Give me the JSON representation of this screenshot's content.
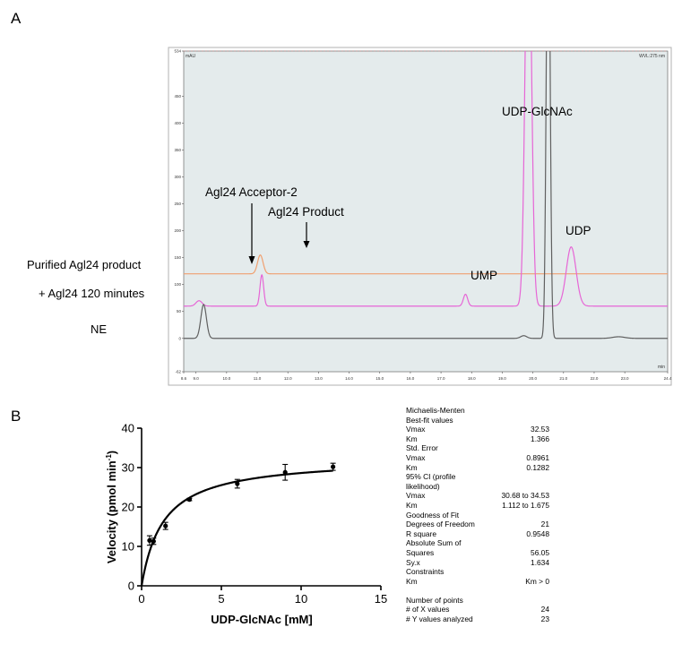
{
  "panel_a": {
    "letter": "A",
    "unit_label": "mAU",
    "wavelength_label": "WVL:275 nm",
    "time_unit": "min",
    "y_top_label": "534",
    "trace_labels": [
      "Purified Agl24 product",
      "+ Agl24 120 minutes",
      "NE"
    ],
    "peak_labels": {
      "acceptor": "Agl24 Acceptor-2",
      "product": "Agl24 Product",
      "ump": "UMP",
      "udp_glcnac": "UDP-GlcNAc",
      "udp": "UDP"
    }
  },
  "panel_b": {
    "letter": "B",
    "stats": [
      {
        "label": "Michaelis-Menten",
        "value": ""
      },
      {
        "label": "Best-fit values",
        "value": ""
      },
      {
        "label": "Vmax",
        "value": "32.53"
      },
      {
        "label": "Km",
        "value": "1.366"
      },
      {
        "label": "Std. Error",
        "value": ""
      },
      {
        "label": "Vmax",
        "value": "0.8961"
      },
      {
        "label": "Km",
        "value": "0.1282"
      },
      {
        "label": "95% CI (profile",
        "value": ""
      },
      {
        "label": "likelihood)",
        "value": ""
      },
      {
        "label": "Vmax",
        "value": "30.68 to 34.53"
      },
      {
        "label": "Km",
        "value": "1.112 to 1.675"
      },
      {
        "label": "Goodness of Fit",
        "value": ""
      },
      {
        "label": "Degrees of Freedom",
        "value": "21"
      },
      {
        "label": "R square",
        "value": "0.9548"
      },
      {
        "label": "Absolute Sum of",
        "value": ""
      },
      {
        "label": "Squares",
        "value": "56.05"
      },
      {
        "label": "Sy.x",
        "value": "1.634"
      },
      {
        "label": "Constraints",
        "value": ""
      },
      {
        "label": "Km",
        "value": "Km > 0"
      },
      {
        "label": "",
        "value": ""
      },
      {
        "label": "Number of points",
        "value": ""
      },
      {
        "label": "# of X values",
        "value": "24"
      },
      {
        "label": "# Y values analyzed",
        "value": "23"
      }
    ]
  },
  "chart_data": [
    {
      "type": "line",
      "title": "",
      "xlabel": "min",
      "ylabel": "mAU",
      "xlim": [
        8.6,
        24.4
      ],
      "ylim": [
        -62,
        534
      ],
      "x_ticks": [
        "8.6",
        "9.0",
        "10.0",
        "11.0",
        "12.0",
        "13.0",
        "14.0",
        "15.0",
        "16.0",
        "17.0",
        "18.0",
        "19.0",
        "20.0",
        "21.0",
        "22.0",
        "23.0",
        "24.4"
      ],
      "y_ticks": [
        "-62",
        "0",
        "50",
        "100",
        "150",
        "200",
        "250",
        "300",
        "350",
        "400",
        "450",
        "534"
      ],
      "series": [
        {
          "name": "Purified Agl24 product",
          "color": "#f0a070",
          "baseline": 120,
          "peaks": [
            {
              "x": 11.1,
              "height": 35,
              "width": 0.09
            }
          ]
        },
        {
          "name": "+ Agl24 120 minutes",
          "color": "#e666d6",
          "baseline": 60,
          "peaks": [
            {
              "x": 9.1,
              "height": 10,
              "width": 0.1
            },
            {
              "x": 11.15,
              "height": 58,
              "width": 0.06
            },
            {
              "x": 17.8,
              "height": 22,
              "width": 0.07
            },
            {
              "x": 19.85,
              "height": 800,
              "width": 0.1
            },
            {
              "x": 21.25,
              "height": 110,
              "width": 0.16
            }
          ]
        },
        {
          "name": "NE",
          "color": "#606060",
          "baseline": 0,
          "peaks": [
            {
              "x": 9.25,
              "height": 63,
              "width": 0.09
            },
            {
              "x": 19.7,
              "height": 5,
              "width": 0.1
            },
            {
              "x": 20.5,
              "height": 900,
              "width": 0.06
            },
            {
              "x": 22.8,
              "height": 3,
              "width": 0.2
            }
          ]
        }
      ]
    },
    {
      "type": "scatter",
      "title": "",
      "xlabel": "UDP-GlcNAc [mM]",
      "ylabel": "Velocity (pmol min",
      "ylabel_sup": "-1",
      "ylabel_end": ")",
      "xlim": [
        0,
        15
      ],
      "ylim": [
        0,
        40
      ],
      "x_ticks": [
        0,
        5,
        10,
        15
      ],
      "y_ticks": [
        0,
        10,
        20,
        30,
        40
      ],
      "points": [
        {
          "x": 0.5,
          "y": 11.5,
          "err": 1.2
        },
        {
          "x": 0.75,
          "y": 11.3,
          "err": 0.8
        },
        {
          "x": 1.5,
          "y": 15.2,
          "err": 0.9
        },
        {
          "x": 3.0,
          "y": 21.9,
          "err": 0.3
        },
        {
          "x": 6.0,
          "y": 25.9,
          "err": 1.1
        },
        {
          "x": 9.0,
          "y": 28.8,
          "err": 2.0
        },
        {
          "x": 12.0,
          "y": 30.2,
          "err": 0.9
        }
      ],
      "fit": {
        "model": "Michaelis-Menten",
        "Vmax": 32.53,
        "Km": 1.366
      }
    }
  ]
}
